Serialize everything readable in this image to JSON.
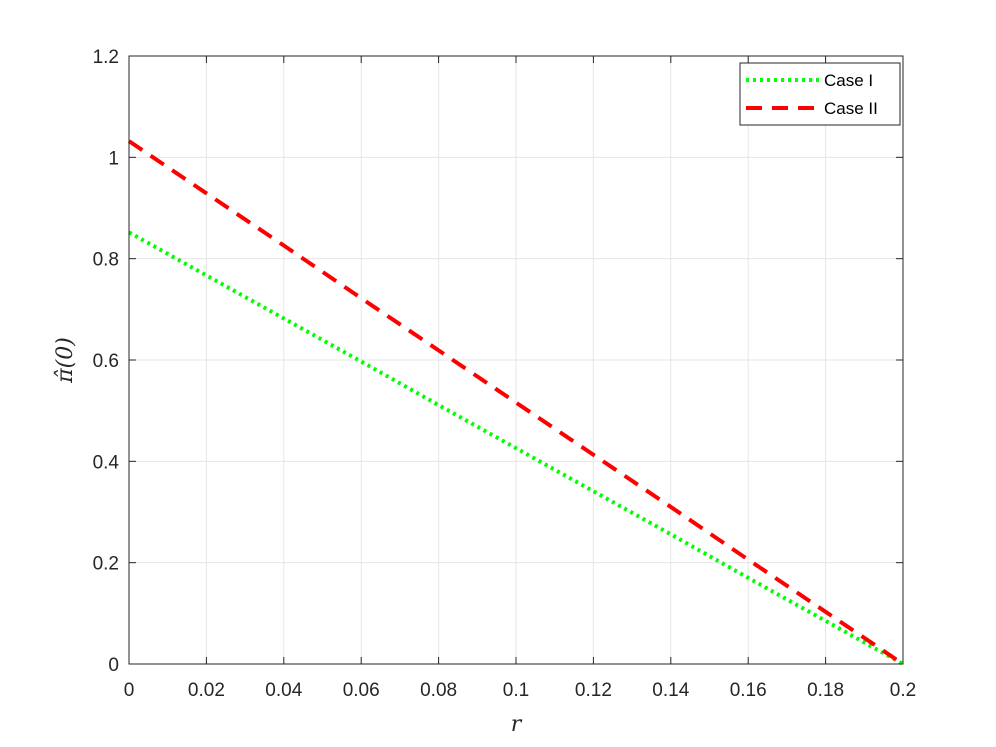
{
  "chart_data": {
    "type": "line",
    "xlabel": "r",
    "ylabel": "π̂(0)",
    "xlim": [
      0,
      0.2
    ],
    "ylim": [
      0,
      1.2
    ],
    "xticks": [
      0,
      0.02,
      0.04,
      0.06,
      0.08,
      0.1,
      0.12,
      0.14,
      0.16,
      0.18,
      0.2
    ],
    "xtick_labels": [
      "0",
      "0.02",
      "0.04",
      "0.06",
      "0.08",
      "0.1",
      "0.12",
      "0.14",
      "0.16",
      "0.18",
      "0.2"
    ],
    "yticks": [
      0,
      0.2,
      0.4,
      0.6,
      0.8,
      1,
      1.2
    ],
    "ytick_labels": [
      "0",
      "0.2",
      "0.4",
      "0.6",
      "0.8",
      "1",
      "1.2"
    ],
    "grid": true,
    "legend_position": "top-right",
    "series": [
      {
        "name": "Case I",
        "color": "#00ff00",
        "style": "dotted",
        "x": [
          0,
          0.02,
          0.04,
          0.06,
          0.08,
          0.1,
          0.12,
          0.14,
          0.16,
          0.18,
          0.2
        ],
        "y": [
          0.852,
          0.767,
          0.682,
          0.597,
          0.511,
          0.426,
          0.341,
          0.256,
          0.17,
          0.085,
          0.0
        ]
      },
      {
        "name": "Case II",
        "color": "#ff0000",
        "style": "dashed",
        "x": [
          0,
          0.02,
          0.04,
          0.06,
          0.08,
          0.1,
          0.12,
          0.14,
          0.16,
          0.18,
          0.2
        ],
        "y": [
          1.032,
          0.929,
          0.826,
          0.722,
          0.619,
          0.516,
          0.413,
          0.31,
          0.206,
          0.103,
          0.0
        ]
      }
    ]
  }
}
